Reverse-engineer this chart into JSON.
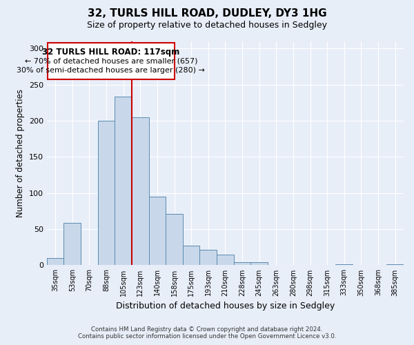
{
  "title": "32, TURLS HILL ROAD, DUDLEY, DY3 1HG",
  "subtitle": "Size of property relative to detached houses in Sedgley",
  "xlabel": "Distribution of detached houses by size in Sedgley",
  "ylabel": "Number of detached properties",
  "bin_labels": [
    "35sqm",
    "53sqm",
    "70sqm",
    "88sqm",
    "105sqm",
    "123sqm",
    "140sqm",
    "158sqm",
    "175sqm",
    "193sqm",
    "210sqm",
    "228sqm",
    "245sqm",
    "263sqm",
    "280sqm",
    "298sqm",
    "315sqm",
    "333sqm",
    "350sqm",
    "368sqm",
    "385sqm"
  ],
  "bar_values": [
    10,
    59,
    0,
    200,
    234,
    205,
    95,
    71,
    27,
    21,
    15,
    4,
    4,
    0,
    0,
    0,
    0,
    1,
    0,
    0,
    1
  ],
  "bar_color": "#c8d8ea",
  "bar_edge_color": "#5a8ab0",
  "highlight_line_color": "#cc0000",
  "annotation_title": "32 TURLS HILL ROAD: 117sqm",
  "annotation_line1": "← 70% of detached houses are smaller (657)",
  "annotation_line2": "30% of semi-detached houses are larger (280) →",
  "annotation_box_color": "#ffffff",
  "annotation_box_edge": "#cc0000",
  "ylim": [
    0,
    310
  ],
  "yticks": [
    0,
    50,
    100,
    150,
    200,
    250,
    300
  ],
  "footer_line1": "Contains HM Land Registry data © Crown copyright and database right 2024.",
  "footer_line2": "Contains public sector information licensed under the Open Government Licence v3.0.",
  "bg_color": "#e8eef8",
  "plot_bg_color": "#e8eef8",
  "grid_color": "#ffffff"
}
